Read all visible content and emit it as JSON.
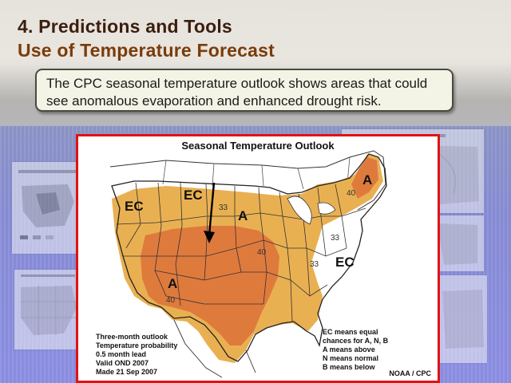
{
  "slide": {
    "title_line1": "4. Predictions and Tools",
    "title_line2": "Use of Temperature Forecast",
    "callout": "The CPC seasonal temperature outlook shows areas that could see anomalous evaporation and enhanced drought risk."
  },
  "map": {
    "title": "Seasonal Temperature Outlook",
    "region_labels": {
      "ec_west": "EC",
      "ec_north": "EC",
      "a_plains": "A",
      "a_northeast": "A",
      "a_southwest": "A",
      "ec_southeast": "EC"
    },
    "probability_labels": {
      "p33_north": "33",
      "p40_plains": "40",
      "p33_east": "33",
      "p33_southeast": "33",
      "p40_northeast": "40",
      "p40_southwest": "40"
    },
    "lead_info": [
      "Three-month outlook",
      "Temperature probability",
      "0.5 month lead",
      "Valid OND 2007",
      "Made 21 Sep 2007"
    ],
    "legend_info": [
      "EC means equal",
      "chances for A, N, B",
      "A means above",
      "N means normal",
      "B means below"
    ],
    "credit": "NOAA / CPC",
    "colors": {
      "frame": "#e01313",
      "light_orange": "#e9b052",
      "dark_orange": "#df7a3d"
    }
  }
}
